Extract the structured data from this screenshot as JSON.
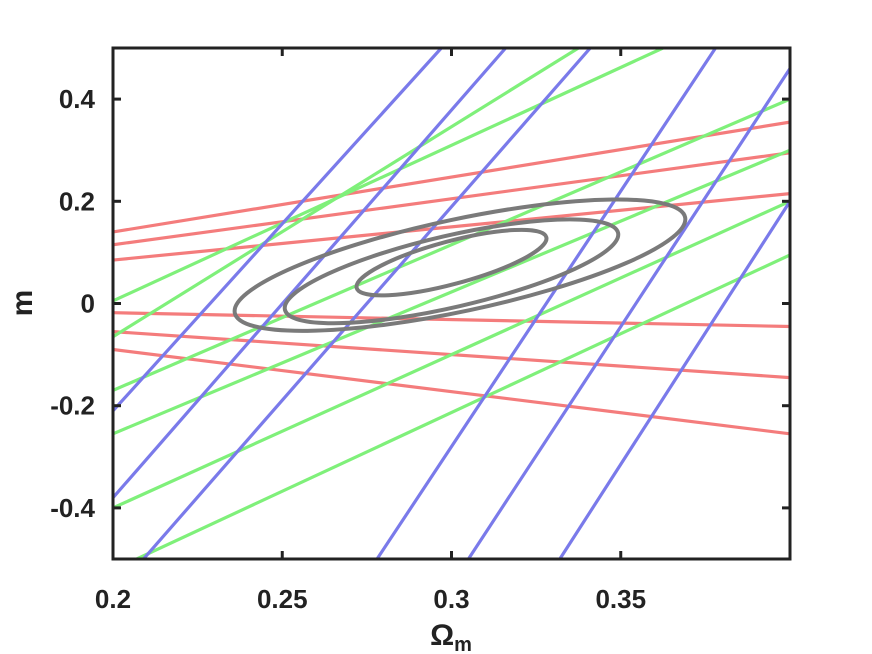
{
  "chart_data": {
    "type": "line",
    "title": "",
    "xlabel": "Ω",
    "xlabel_sub": "m",
    "ylabel": "m",
    "xlim": [
      0.2,
      0.4
    ],
    "ylim": [
      -0.5,
      0.5
    ],
    "x_ticks": [
      {
        "value": 0.2,
        "label": "0.2"
      },
      {
        "value": 0.25,
        "label": "0.25"
      },
      {
        "value": 0.3,
        "label": "0.3"
      },
      {
        "value": 0.35,
        "label": "0.35"
      }
    ],
    "y_ticks": [
      {
        "value": 0.4,
        "label": "0.4"
      },
      {
        "value": 0.2,
        "label": "0.2"
      },
      {
        "value": 0,
        "label": "0"
      },
      {
        "value": -0.2,
        "label": "-0.2"
      },
      {
        "value": -0.4,
        "label": "-0.4"
      }
    ],
    "grid": false,
    "legend": "none",
    "line_groups": [
      {
        "color": "#f47c7c",
        "lines": [
          {
            "x": [
              0.2,
              0.4
            ],
            "y": [
              0.14,
              0.355
            ]
          },
          {
            "x": [
              0.2,
              0.4
            ],
            "y": [
              0.115,
              0.295
            ]
          },
          {
            "x": [
              0.2,
              0.4
            ],
            "y": [
              0.085,
              0.215
            ]
          },
          {
            "x": [
              0.2,
              0.4
            ],
            "y": [
              -0.018,
              -0.045
            ]
          },
          {
            "x": [
              0.2,
              0.4
            ],
            "y": [
              -0.055,
              -0.145
            ]
          },
          {
            "x": [
              0.2,
              0.4
            ],
            "y": [
              -0.09,
              -0.255
            ]
          }
        ]
      },
      {
        "color": "#7ff07a",
        "lines": [
          {
            "x": [
              0.2,
              0.3625
            ],
            "y": [
              0.005,
              0.5
            ]
          },
          {
            "x": [
              0.2,
              0.3375
            ],
            "y": [
              -0.065,
              0.5
            ]
          },
          {
            "x": [
              0.2,
              0.4
            ],
            "y": [
              -0.17,
              0.4
            ]
          },
          {
            "x": [
              0.2,
              0.4
            ],
            "y": [
              -0.255,
              0.3
            ]
          },
          {
            "x": [
              0.2,
              0.4
            ],
            "y": [
              -0.4,
              0.2
            ]
          },
          {
            "x": [
              0.207,
              0.4
            ],
            "y": [
              -0.5,
              0.095
            ]
          }
        ]
      },
      {
        "color": "#7a7aea",
        "lines": [
          {
            "x": [
              0.2,
              0.297
            ],
            "y": [
              -0.21,
              0.5
            ]
          },
          {
            "x": [
              0.2,
              0.316
            ],
            "y": [
              -0.38,
              0.5
            ]
          },
          {
            "x": [
              0.209,
              0.341
            ],
            "y": [
              -0.5,
              0.5
            ]
          },
          {
            "x": [
              0.278,
              0.378
            ],
            "y": [
              -0.5,
              0.5
            ]
          },
          {
            "x": [
              0.305,
              0.4
            ],
            "y": [
              -0.5,
              0.46
            ]
          },
          {
            "x": [
              0.332,
              0.4
            ],
            "y": [
              -0.5,
              0.2
            ]
          }
        ]
      }
    ],
    "contours": {
      "color": "#7a7a7a",
      "ellipses": [
        {
          "cx": 0.3,
          "cy": 0.08,
          "rx": 0.029,
          "ry": 0.042,
          "angle_deg": 15
        },
        {
          "cx": 0.3,
          "cy": 0.063,
          "rx": 0.0505,
          "ry": 0.07,
          "angle_deg": 13
        },
        {
          "cx": 0.3025,
          "cy": 0.075,
          "rx": 0.068,
          "ry": 0.09,
          "angle_deg": 12
        }
      ]
    }
  }
}
